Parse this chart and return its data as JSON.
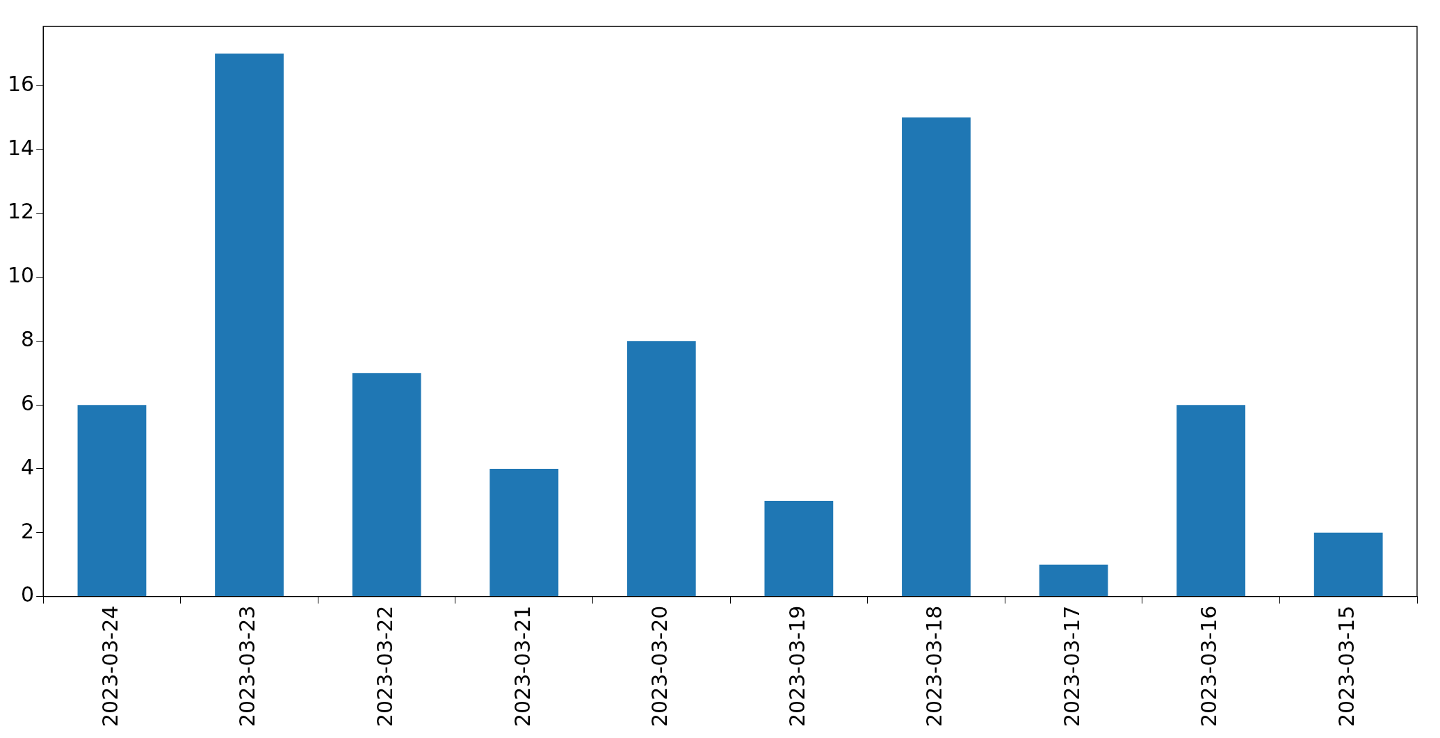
{
  "chart_data": {
    "type": "bar",
    "categories": [
      "2023-03-24",
      "2023-03-23",
      "2023-03-22",
      "2023-03-21",
      "2023-03-20",
      "2023-03-19",
      "2023-03-18",
      "2023-03-17",
      "2023-03-16",
      "2023-03-15"
    ],
    "values": [
      6,
      17,
      7,
      4,
      8,
      3,
      15,
      1,
      6,
      2
    ],
    "color": "#1f77b4",
    "ylim": [
      0,
      17.85
    ],
    "yticks": [
      0,
      2,
      4,
      6,
      8,
      10,
      12,
      14,
      16
    ],
    "grid": false,
    "legend": false
  }
}
